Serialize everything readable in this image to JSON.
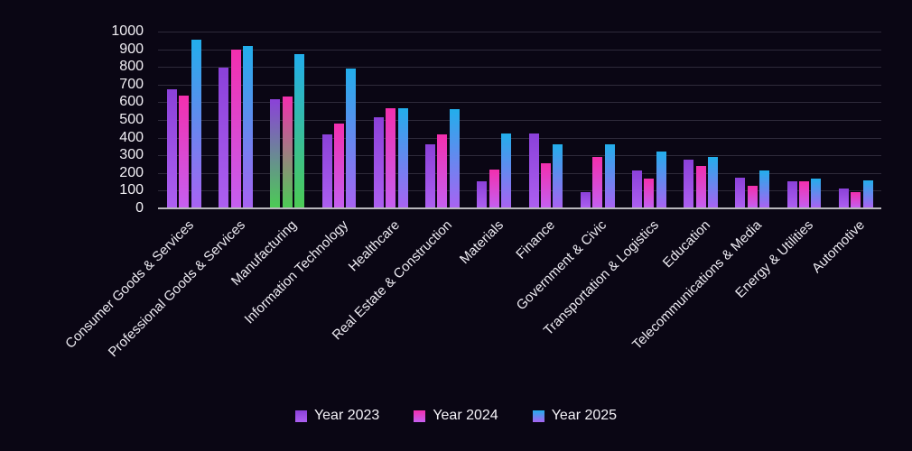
{
  "chart_data": {
    "type": "bar",
    "title": "",
    "xlabel": "",
    "ylabel": "",
    "ylim": [
      0,
      1000
    ],
    "y_ticks": [
      0,
      100,
      200,
      300,
      400,
      500,
      600,
      700,
      800,
      900,
      1000
    ],
    "grid": true,
    "legend_position": "bottom",
    "categories": [
      "Consumer Goods & Services",
      "Professional Goods & Services",
      "Manufacturing",
      "Information Technology",
      "Healthcare",
      "Real Estate & Construction",
      "Materials",
      "Finance",
      "Government & Civic",
      "Transportation & Logistics",
      "Education",
      "Telecommunications & Media",
      "Energy & Utilities",
      "Automotive"
    ],
    "series": [
      {
        "name": "Year 2023",
        "color_top": "#8b41d9",
        "color_bottom": "#ac5ff0",
        "values": [
          670,
          790,
          610,
          415,
          510,
          355,
          150,
          420,
          85,
          210,
          270,
          170,
          150,
          105
        ]
      },
      {
        "name": "Year 2024",
        "color_top": "#f32fae",
        "color_bottom": "#c55ff0",
        "values": [
          635,
          895,
          630,
          475,
          560,
          415,
          215,
          250,
          285,
          165,
          235,
          120,
          150,
          85
        ]
      },
      {
        "name": "Year 2025",
        "color_top": "#22aeeb",
        "color_bottom": "#a863f2",
        "values": [
          950,
          915,
          865,
          785,
          560,
          555,
          420,
          355,
          355,
          315,
          285,
          210,
          165,
          155
        ]
      }
    ],
    "highlight": {
      "category": "Manufacturing",
      "bottom_color": "#4ccb55"
    }
  },
  "colors": {
    "background": "#0a0614",
    "gridline": "#2e2a3a",
    "axis_line": "#b9b7bd",
    "text": "#f2f0f5"
  }
}
